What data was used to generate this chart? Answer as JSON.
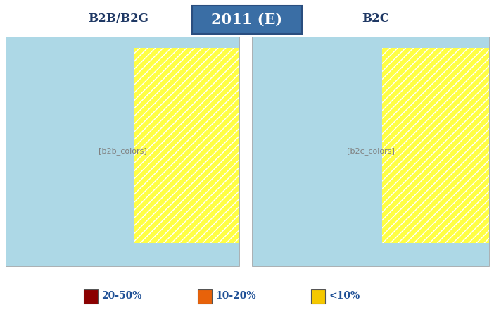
{
  "title": "2011 (E)",
  "title_bg_color": "#3a6ea5",
  "title_text_color": "#ffffff",
  "left_label": "B2B/B2G",
  "right_label": "B2C",
  "label_color": "#1f3864",
  "legend_items": [
    {
      "label": "20-50%",
      "color": "#8b0000"
    },
    {
      "label": "10-20%",
      "color": "#e8620a"
    },
    {
      "label": "<10%",
      "color": "#f5c800"
    }
  ],
  "legend_text_color": "#1f5096",
  "sea_color": "#add8e6",
  "hatch_fill": "#ffff66",
  "hatch_edge": "#ffff00",
  "map_extent": [
    -25,
    45,
    34,
    72
  ],
  "b2b_colors": {
    "Finland": "#8b0000",
    "Norway": "#8b0000",
    "Denmark": "#8b0000",
    "Sweden": "#f5c800",
    "Estonia": "#f5c800",
    "Latvia": "#f5c800",
    "Lithuania": "#f5c800",
    "Ireland": "#8b0000",
    "United Kingdom": "#8b0000",
    "Netherlands": "#f5c800",
    "Belgium": "#f5c800",
    "Germany": "#f5c800",
    "Poland": "#f5c800",
    "Czechia": "#f5c800",
    "Slovakia": "#f5c800",
    "Austria": "#f5c800",
    "Hungary": "#f5c800",
    "Romania": "#f5c800",
    "Bulgaria": "#f5c800",
    "France": "#f5c800",
    "Switzerland": "#f5c800",
    "Italy": "#8b0000",
    "Slovenia": "#f5c800",
    "Croatia": "#f5c800",
    "Spain": "#e8620a",
    "Portugal": "#f5c800",
    "Greece": "#f5c800",
    "Iceland": "#f5c800",
    "Luxembourg": "#f5c800",
    "Serbia": "#f5c800",
    "Bosnia and Herz.": "#f5c800",
    "Montenegro": "#f5c800",
    "Albania": "#f5c800",
    "North Macedonia": "#f5c800",
    "Moldova": "#f5c800",
    "Belarus": "#f5c800",
    "Ukraine": "#f5c800",
    "Russia": "#f5c800",
    "Turkey": "#f5c800"
  },
  "b2c_colors": {
    "Finland": "#8b0000",
    "Norway": "#e8620a",
    "Denmark": "#8b0000",
    "Sweden": "#f5c800",
    "Estonia": "#f5c800",
    "Latvia": "#f5c800",
    "Lithuania": "#f5c800",
    "Ireland": "#e8620a",
    "United Kingdom": "#e8620a",
    "Netherlands": "#e8620a",
    "Belgium": "#f5c800",
    "Germany": "#f5c800",
    "Poland": "#f5c800",
    "Czechia": "#f5c800",
    "Slovakia": "#f5c800",
    "Austria": "#f5c800",
    "Hungary": "#f5c800",
    "Romania": "#f5c800",
    "Bulgaria": "#f5c800",
    "France": "#f5c800",
    "Switzerland": "#f5c800",
    "Italy": "#f5c800",
    "Slovenia": "#f5c800",
    "Croatia": "#f5c800",
    "Spain": "#f5c800",
    "Portugal": "#f5c800",
    "Greece": "#f5c800",
    "Iceland": "#f5c800",
    "Luxembourg": "#f5c800",
    "Serbia": "#f5c800",
    "Bosnia and Herz.": "#f5c800",
    "Montenegro": "#f5c800",
    "Albania": "#f5c800",
    "North Macedonia": "#f5c800",
    "Moldova": "#f5c800",
    "Belarus": "#f5c800",
    "Ukraine": "#f5c800",
    "Russia": "#f5c800",
    "Turkey": "#f5c800"
  },
  "figsize": [
    7.02,
    4.43
  ],
  "dpi": 100
}
